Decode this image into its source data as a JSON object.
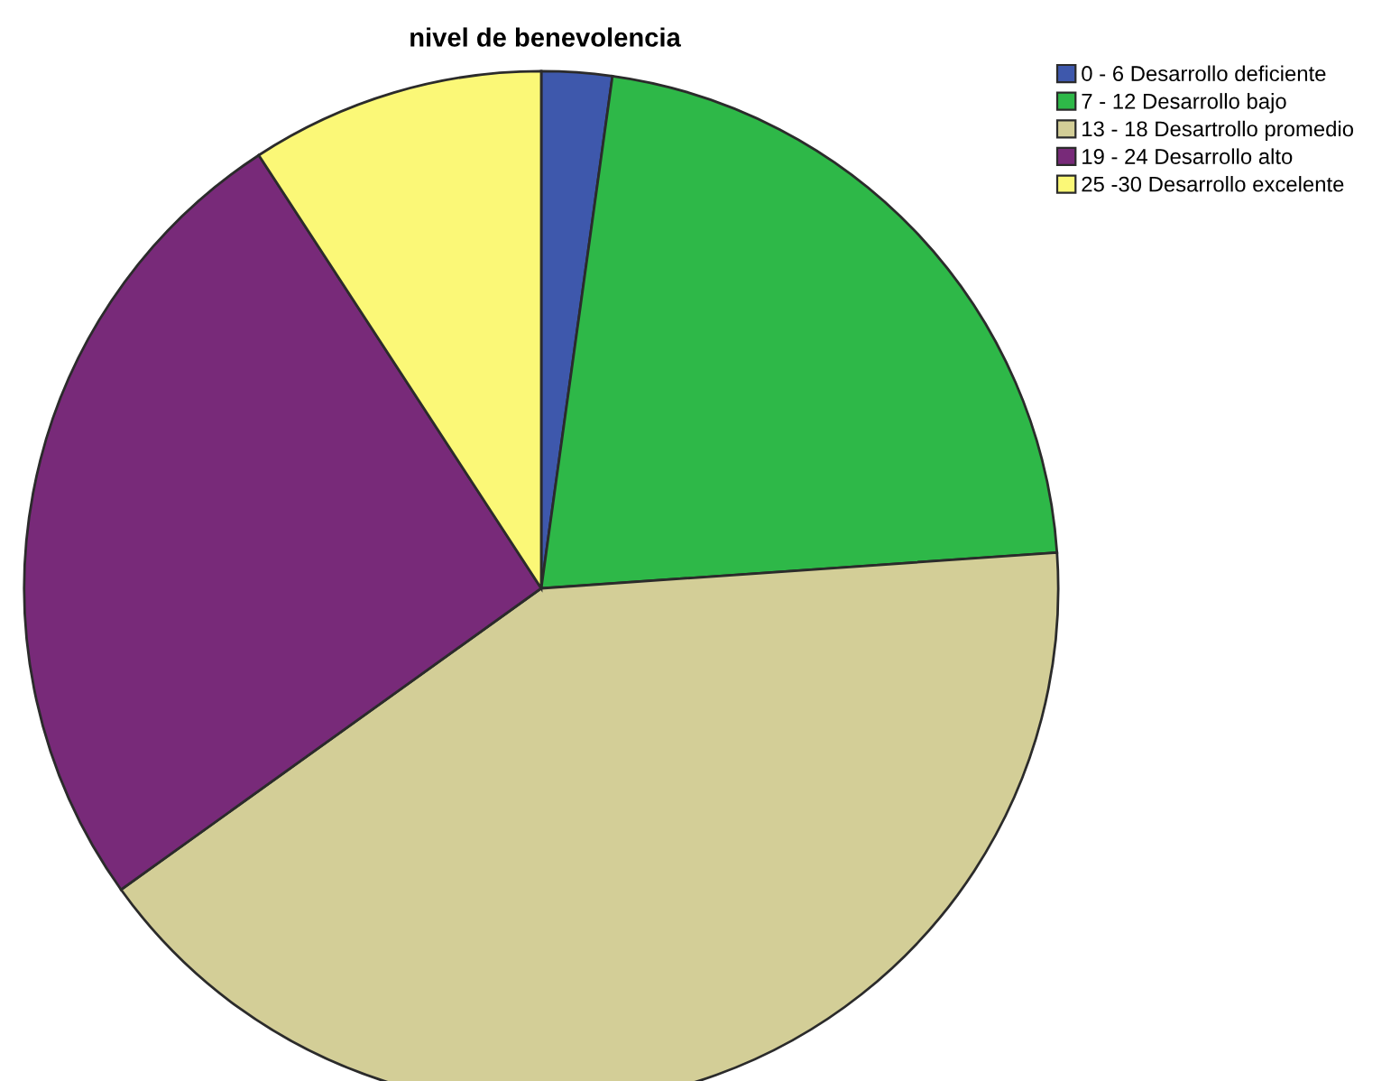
{
  "chart_data": {
    "type": "pie",
    "title": "nivel de benevolencia",
    "categories": [
      "0 - 6 Desarrollo deficiente",
      "7 - 12 Desarrollo bajo",
      "13 - 18 Desartrollo promedio",
      "19 - 24 Desarrollo alto",
      "25 -30 Desarrollo excelente"
    ],
    "values": [
      2.2,
      21.7,
      41.2,
      25.7,
      9.2
    ],
    "colors": [
      "#3e58ac",
      "#2eb848",
      "#d3ce97",
      "#782a79",
      "#fbf877"
    ],
    "legend": "top right"
  }
}
